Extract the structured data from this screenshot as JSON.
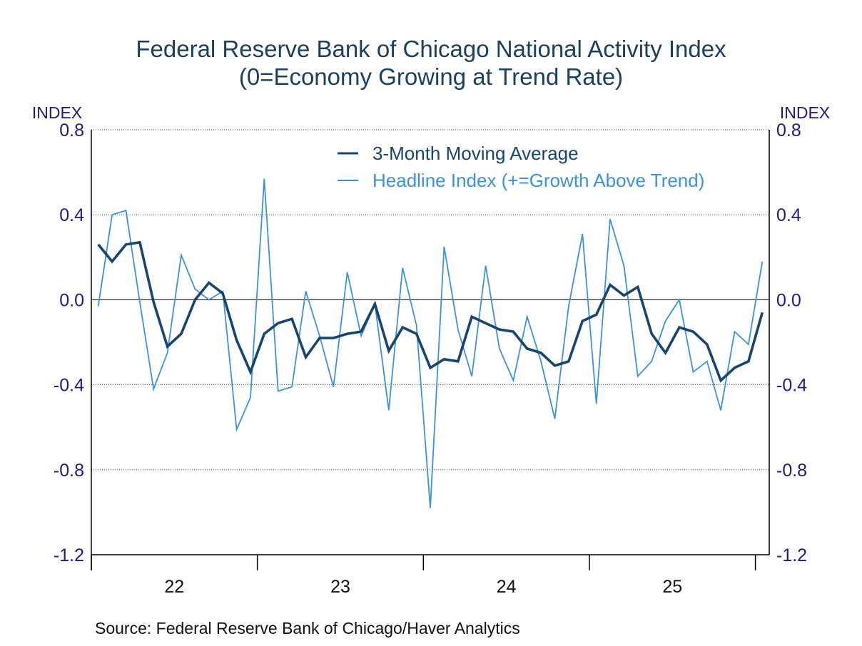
{
  "chart_data": {
    "type": "line",
    "title": "Federal Reserve Bank of Chicago National Activity Index",
    "subtitle": "(0=Economy Growing at Trend Rate)",
    "ylabel_left": "INDEX",
    "ylabel_right": "INDEX",
    "source": "Source:  Federal Reserve Bank of Chicago/Haver Analytics",
    "ylim": [
      -1.2,
      0.8
    ],
    "yticks": [
      0.8,
      0.4,
      0.0,
      -0.4,
      -0.8,
      -1.2
    ],
    "ytick_labels": [
      "0.8",
      "0.4",
      "0.0",
      "-0.4",
      "-0.8",
      "-1.2"
    ],
    "x_start": "2022-01",
    "x_end": "2026-01",
    "xtick_labels": [
      "22",
      "23",
      "24",
      "25"
    ],
    "grid": "horizontal dotted",
    "legend_placement": "top-center",
    "x": [
      "2022-01",
      "2022-02",
      "2022-03",
      "2022-04",
      "2022-05",
      "2022-06",
      "2022-07",
      "2022-08",
      "2022-09",
      "2022-10",
      "2022-11",
      "2022-12",
      "2023-01",
      "2023-02",
      "2023-03",
      "2023-04",
      "2023-05",
      "2023-06",
      "2023-07",
      "2023-08",
      "2023-09",
      "2023-10",
      "2023-11",
      "2023-12",
      "2024-01",
      "2024-02",
      "2024-03",
      "2024-04",
      "2024-05",
      "2024-06",
      "2024-07",
      "2024-08",
      "2024-09",
      "2024-10",
      "2024-11",
      "2024-12",
      "2025-01",
      "2025-02",
      "2025-03",
      "2025-04",
      "2025-05",
      "2025-06",
      "2025-07",
      "2025-08",
      "2025-09",
      "2025-10",
      "2025-11",
      "2025-12",
      "2026-01"
    ],
    "series": [
      {
        "name": "3-Month Moving Average",
        "color": "#17456f",
        "values": [
          0.26,
          0.18,
          0.26,
          0.27,
          -0.01,
          -0.22,
          -0.16,
          0.0,
          0.08,
          0.03,
          -0.19,
          -0.34,
          -0.16,
          -0.11,
          -0.09,
          -0.27,
          -0.18,
          -0.18,
          -0.16,
          -0.15,
          -0.02,
          -0.24,
          -0.13,
          -0.16,
          -0.32,
          -0.28,
          -0.29,
          -0.08,
          -0.11,
          -0.14,
          -0.15,
          -0.23,
          -0.25,
          -0.31,
          -0.29,
          -0.1,
          -0.07,
          0.07,
          0.02,
          0.06,
          -0.16,
          -0.25,
          -0.13,
          -0.15,
          -0.21,
          -0.38,
          -0.32,
          -0.29,
          -0.06
        ]
      },
      {
        "name": "Headline Index (+=Growth Above Trend)",
        "color": "#3b93dd",
        "values": [
          -0.03,
          0.4,
          0.42,
          -0.01,
          -0.42,
          -0.25,
          0.21,
          0.05,
          0.0,
          0.04,
          -0.61,
          -0.46,
          0.57,
          -0.43,
          -0.41,
          0.04,
          -0.17,
          -0.41,
          0.13,
          -0.17,
          -0.02,
          -0.52,
          0.15,
          -0.12,
          -0.98,
          0.25,
          -0.14,
          -0.36,
          0.16,
          -0.23,
          -0.38,
          -0.08,
          -0.29,
          -0.56,
          -0.03,
          0.31,
          -0.49,
          0.38,
          0.16,
          -0.36,
          -0.29,
          -0.1,
          0.0,
          -0.34,
          -0.29,
          -0.52,
          -0.15,
          -0.21,
          0.18
        ]
      }
    ]
  }
}
